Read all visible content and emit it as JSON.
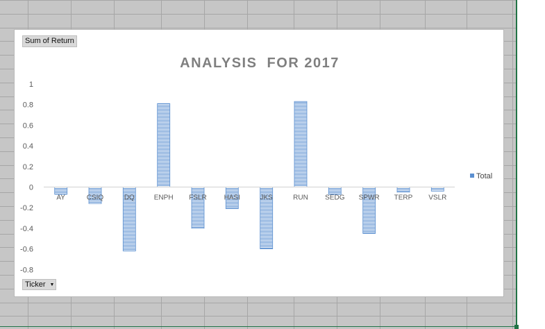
{
  "pivot": {
    "value_field": "Sum of Return",
    "row_field": "Ticker"
  },
  "chart_data": {
    "type": "bar",
    "title": "ANALYSIS  FOR 2017",
    "categories": [
      "AY",
      "CSIQ",
      "DQ",
      "ENPH",
      "FSLR",
      "HASI",
      "JKS",
      "RUN",
      "SEDG",
      "SPWR",
      "TERP",
      "VSLR"
    ],
    "series": [
      {
        "name": "Total",
        "values": [
          -0.07,
          -0.16,
          -0.62,
          0.81,
          -0.4,
          -0.21,
          -0.6,
          0.83,
          -0.07,
          -0.45,
          -0.05,
          -0.04
        ],
        "color": "#5b8fd0"
      }
    ],
    "ylim": [
      -0.8,
      1
    ],
    "yticks": [
      1,
      0.8,
      0.6,
      0.4,
      0.2,
      0,
      -0.2,
      -0.4,
      -0.6,
      -0.8
    ],
    "ytick_labels": [
      "1",
      "0.8",
      "0.6",
      "0.4",
      "0.2",
      "0",
      "-0.2",
      "-0.4",
      "-0.6",
      "-0.8"
    ],
    "legend_position": "right",
    "grid": false
  },
  "colors": {
    "bar": "#5b8fd0",
    "bar_stripe": "#ffffff",
    "axis_text": "#595959",
    "title": "#7f7f7f",
    "sheet_gridline": "#a6a6a6",
    "selection": "#217346"
  }
}
